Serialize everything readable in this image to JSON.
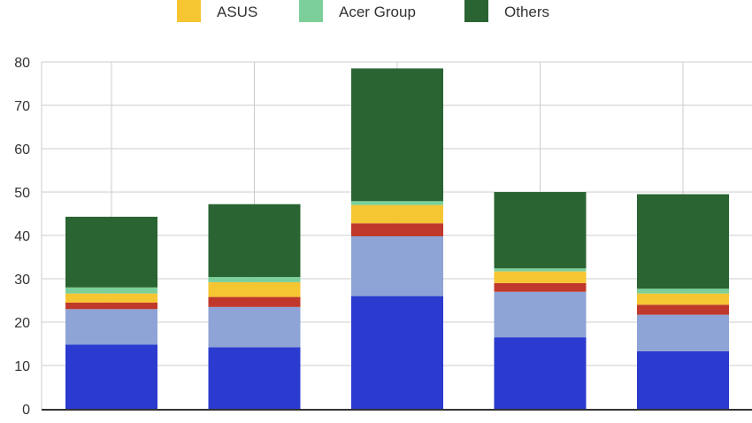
{
  "chart_data": {
    "type": "bar",
    "stacked": true,
    "title": "",
    "xlabel": "",
    "ylabel": "",
    "ylim": [
      0,
      80
    ],
    "yticks": [
      0,
      10,
      20,
      30,
      40,
      50,
      60,
      70,
      80
    ],
    "grid": true,
    "legend_position": "top",
    "legend": [
      {
        "name": "ASUS",
        "color": "#f6c532"
      },
      {
        "name": "Acer Group",
        "color": "#7ccf9a"
      },
      {
        "name": "Others",
        "color": "#2a6433"
      }
    ],
    "categories": [
      "",
      "",
      "",
      "",
      ""
    ],
    "series": [
      {
        "color": "#2b3bcf",
        "values": [
          14.8,
          14.2,
          26.0,
          16.5,
          13.3
        ]
      },
      {
        "color": "#8ea3d6",
        "values": [
          8.2,
          9.3,
          13.8,
          10.5,
          8.4
        ]
      },
      {
        "color": "#c0382b",
        "values": [
          1.5,
          2.3,
          3.0,
          2.0,
          2.3
        ]
      },
      {
        "name": "ASUS",
        "color": "#f6c532",
        "values": [
          2.1,
          3.4,
          4.2,
          2.7,
          2.6
        ]
      },
      {
        "name": "Acer Group",
        "color": "#7ccf9a",
        "values": [
          1.4,
          1.2,
          0.9,
          0.7,
          1.1
        ]
      },
      {
        "name": "Others",
        "color": "#2a6433",
        "values": [
          16.3,
          16.8,
          30.6,
          17.6,
          21.8
        ]
      }
    ]
  }
}
